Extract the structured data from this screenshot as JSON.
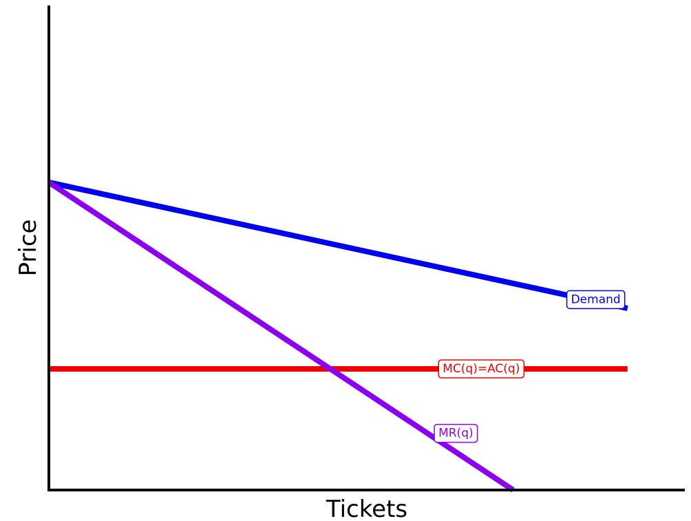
{
  "chart_data": {
    "type": "line",
    "xlabel": "Tickets",
    "ylabel": "Price",
    "xlim": [
      0,
      10
    ],
    "ylim": [
      0,
      10
    ],
    "grid": false,
    "axis_ticks": false,
    "series": [
      {
        "name": "Demand",
        "color": "#0000ee",
        "x": [
          0,
          9.1
        ],
        "y": [
          6.35,
          3.75
        ]
      },
      {
        "name": "MR(q)",
        "color": "#8b00ee",
        "x": [
          0,
          7.3
        ],
        "y": [
          6.35,
          0
        ]
      },
      {
        "name": "MC(q)=AC(q)",
        "color": "#ee0000",
        "x": [
          0,
          9.1
        ],
        "y": [
          2.5,
          2.5
        ]
      }
    ],
    "labels": [
      {
        "series": "Demand",
        "text": "Demand",
        "x": 8.6,
        "y": 3.93
      },
      {
        "series": "MC(q)=AC(q)",
        "text": "MC(q)=AC(q)",
        "x": 6.8,
        "y": 2.5
      },
      {
        "series": "MR(q)",
        "text": "MR(q)",
        "x": 6.4,
        "y": 1.17
      }
    ]
  }
}
